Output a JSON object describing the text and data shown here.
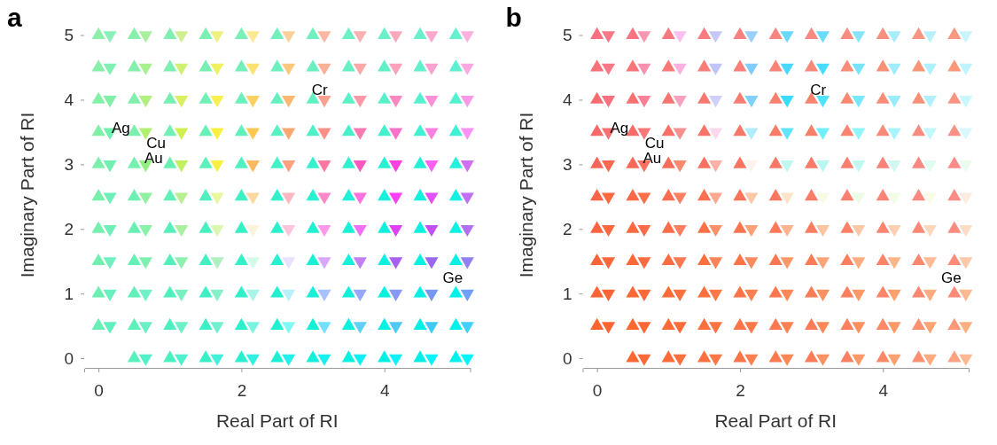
{
  "chart_data": [
    {
      "type": "scatter",
      "title": "a",
      "xlabel": "Real Part of RI",
      "ylabel": "Imaginary Part of RI",
      "xlim": [
        -0.2,
        5.2
      ],
      "ylim": [
        -0.15,
        5.2
      ],
      "xticks": [
        0,
        2,
        4
      ],
      "yticks": [
        0,
        1,
        2,
        3,
        4,
        5
      ],
      "annotations": [
        "Ag",
        "Cu",
        "Au",
        "Cr",
        "Ge"
      ],
      "series": [
        {
          "marker": "triangle",
          "x": [
            0,
            0.5,
            1,
            1.5,
            2,
            2.5,
            3,
            3.5,
            4,
            4.5,
            5,
            0,
            0.5,
            1,
            1.5,
            2,
            2.5,
            3,
            3.5,
            4,
            4.5,
            5,
            0,
            0.5,
            1,
            1.5,
            2,
            2.5,
            3,
            3.5,
            4,
            4.5,
            5,
            0,
            0.5,
            1,
            1.5,
            2,
            2.5,
            3,
            3.5,
            4,
            4.5,
            5,
            0,
            0.5,
            1,
            1.5,
            2,
            2.5,
            3,
            3.5,
            4,
            4.5,
            5,
            0,
            0.5,
            1,
            1.5,
            2,
            2.5,
            3,
            3.5,
            4,
            4.5,
            5,
            0,
            0.5,
            1,
            1.5,
            2,
            2.5,
            3,
            3.5,
            4,
            4.5,
            5,
            0,
            0.5,
            1,
            1.5,
            2,
            2.5,
            3,
            3.5,
            4,
            4.5,
            5,
            0,
            0.5,
            1,
            1.5,
            2,
            2.5,
            3,
            3.5,
            4,
            4.5,
            5,
            0,
            0.5,
            1,
            1.5,
            2,
            2.5,
            3,
            3.5,
            4,
            4.5,
            5,
            0.5,
            1,
            1.5,
            2,
            2.5,
            3,
            3.5,
            4,
            4.5,
            5
          ],
          "values": [
            5,
            5,
            5,
            5,
            5,
            5,
            5,
            5,
            5,
            5,
            5,
            4.5,
            4.5,
            4.5,
            4.5,
            4.5,
            4.5,
            4.5,
            4.5,
            4.5,
            4.5,
            4.5,
            4,
            4,
            4,
            4,
            4,
            4,
            4,
            4,
            4,
            4,
            4,
            3.5,
            3.5,
            3.5,
            3.5,
            3.5,
            3.5,
            3.5,
            3.5,
            3.5,
            3.5,
            3.5,
            3,
            3,
            3,
            3,
            3,
            3,
            3,
            3,
            3,
            3,
            3,
            2.5,
            2.5,
            2.5,
            2.5,
            2.5,
            2.5,
            2.5,
            2.5,
            2.5,
            2.5,
            2.5,
            2,
            2,
            2,
            2,
            2,
            2,
            2,
            2,
            2,
            2,
            2,
            1.5,
            1.5,
            1.5,
            1.5,
            1.5,
            1.5,
            1.5,
            1.5,
            1.5,
            1.5,
            1.5,
            1,
            1,
            1,
            1,
            1,
            1,
            1,
            1,
            1,
            1,
            1,
            0.5,
            0.5,
            0.5,
            0.5,
            0.5,
            0.5,
            0.5,
            0.5,
            0.5,
            0.5,
            0.5,
            0,
            0,
            0,
            0,
            0,
            0,
            0,
            0,
            0,
            0
          ],
          "colors": [
            "#8cf0a8",
            "#88f0aa",
            "#80f0b0",
            "#7cf0b4",
            "#78f0b8",
            "#74f0bc",
            "#70f0c0",
            "#6cf0c4",
            "#6af0c8",
            "#68f0cc",
            "#66f0d0",
            "#88f0a8",
            "#84f0ac",
            "#7cf0b0",
            "#78f0b4",
            "#72f0b8",
            "#6ef0bc",
            "#6af0c0",
            "#66f0c4",
            "#62f0c8",
            "#60f0cc",
            "#5ef0d0",
            "#84f0a8",
            "#80f0ac",
            "#76f0b0",
            "#70f0b6",
            "#6af0ba",
            "#64f0be",
            "#60f0c2",
            "#5cf0c6",
            "#58f0ca",
            "#56f0ce",
            "#54f0d2",
            "#80f0a8",
            "#7af0ac",
            "#70f0b2",
            "#68f0b8",
            "#60f0bc",
            "#58f0c0",
            "#50f0c6",
            "#48f0ca",
            "#44f0ce",
            "#40f0d2",
            "#40f0d6",
            "#7cf0aa",
            "#74f0b0",
            "#68f0b4",
            "#5cf0ba",
            "#50f0c0",
            "#44f0c6",
            "#38f0cc",
            "#30f0d0",
            "#28f0d4",
            "#24f0d8",
            "#24f0dc",
            "#78f0ac",
            "#6ef0b2",
            "#60f0b8",
            "#50f0be",
            "#40f0c4",
            "#34f0ca",
            "#28f0d0",
            "#20f0d6",
            "#18f0da",
            "#14f0de",
            "#14f0e2",
            "#74f0ae",
            "#68f0b4",
            "#58f0ba",
            "#48f0c0",
            "#38f0c6",
            "#2cf0cc",
            "#20f0d2",
            "#18f0d8",
            "#10f0dc",
            "#0cf0e0",
            "#0cf0e4",
            "#70f0b0",
            "#64f0b6",
            "#54f0bc",
            "#44f0c2",
            "#34f0c8",
            "#28f0ce",
            "#1cf0d4",
            "#14f0da",
            "#0cf0de",
            "#08f0e2",
            "#08f0e6",
            "#6cf0b2",
            "#60f0b8",
            "#50f0be",
            "#40f0c4",
            "#30f0ca",
            "#24f0d0",
            "#18f0d6",
            "#10f0dc",
            "#08f0e0",
            "#04f0e4",
            "#04f0e8",
            "#68f0b4",
            "#5cf0ba",
            "#4cf0c0",
            "#3cf0c6",
            "#2cf0cc",
            "#20f0d2",
            "#14f0d8",
            "#0cf0de",
            "#04f0e2",
            "#00f0e6",
            "#00f0ea",
            "#58f0bc",
            "#48f0c2",
            "#38f0c8",
            "#28f0ce",
            "#1cf0d4",
            "#10f0da",
            "#08f0e0",
            "#00f0e4",
            "#00f0e8",
            "#00f0ec"
          ]
        },
        {
          "marker": "triangle-down",
          "x": [
            0.16,
            0.66,
            1.16,
            1.66,
            2.16,
            2.66,
            3.16,
            3.66,
            4.16,
            4.66,
            5.16,
            0.16,
            0.66,
            1.16,
            1.66,
            2.16,
            2.66,
            3.16,
            3.66,
            4.16,
            4.66,
            5.16,
            0.16,
            0.66,
            1.16,
            1.66,
            2.16,
            2.66,
            3.16,
            3.66,
            4.16,
            4.66,
            5.16,
            0.16,
            0.66,
            1.16,
            1.66,
            2.16,
            2.66,
            3.16,
            3.66,
            4.16,
            4.66,
            5.16,
            0.16,
            0.66,
            1.16,
            1.66,
            2.16,
            2.66,
            3.16,
            3.66,
            4.16,
            4.66,
            5.16,
            0.16,
            0.66,
            1.16,
            1.66,
            2.16,
            2.66,
            3.16,
            3.66,
            4.16,
            4.66,
            5.16,
            0.16,
            0.66,
            1.16,
            1.66,
            2.16,
            2.66,
            3.16,
            3.66,
            4.16,
            4.66,
            5.16,
            0.16,
            0.66,
            1.16,
            1.66,
            2.16,
            2.66,
            3.16,
            3.66,
            4.16,
            4.66,
            5.16,
            0.16,
            0.66,
            1.16,
            1.66,
            2.16,
            2.66,
            3.16,
            3.66,
            4.16,
            4.66,
            5.16,
            0.16,
            0.66,
            1.16,
            1.66,
            2.16,
            2.66,
            3.16,
            3.66,
            4.16,
            4.66,
            5.16,
            0.66,
            1.16,
            1.66,
            2.16,
            2.66,
            3.16,
            3.66,
            4.16,
            4.66,
            5.16
          ],
          "values": [
            5,
            5,
            5,
            5,
            5,
            5,
            5,
            5,
            5,
            5,
            5,
            4.5,
            4.5,
            4.5,
            4.5,
            4.5,
            4.5,
            4.5,
            4.5,
            4.5,
            4.5,
            4.5,
            4,
            4,
            4,
            4,
            4,
            4,
            4,
            4,
            4,
            4,
            4,
            3.5,
            3.5,
            3.5,
            3.5,
            3.5,
            3.5,
            3.5,
            3.5,
            3.5,
            3.5,
            3.5,
            3,
            3,
            3,
            3,
            3,
            3,
            3,
            3,
            3,
            3,
            3,
            2.5,
            2.5,
            2.5,
            2.5,
            2.5,
            2.5,
            2.5,
            2.5,
            2.5,
            2.5,
            2.5,
            2,
            2,
            2,
            2,
            2,
            2,
            2,
            2,
            2,
            2,
            2,
            1.5,
            1.5,
            1.5,
            1.5,
            1.5,
            1.5,
            1.5,
            1.5,
            1.5,
            1.5,
            1.5,
            1,
            1,
            1,
            1,
            1,
            1,
            1,
            1,
            1,
            1,
            1,
            0.5,
            0.5,
            0.5,
            0.5,
            0.5,
            0.5,
            0.5,
            0.5,
            0.5,
            0.5,
            0.5,
            0,
            0,
            0,
            0,
            0,
            0,
            0,
            0,
            0,
            0
          ],
          "colors": [
            "#88f0b8",
            "#a8f0a0",
            "#d0f090",
            "#f0f080",
            "#fce890",
            "#fcd09a",
            "#fcb8a0",
            "#fcb0b0",
            "#fca8bc",
            "#fca8cc",
            "#fcb0dc",
            "#80f0b4",
            "#a8f090",
            "#d0f070",
            "#f0f060",
            "#fce070",
            "#fcc880",
            "#fcb098",
            "#fca8a8",
            "#fca0bc",
            "#fca0d0",
            "#fca8e0",
            "#80f0a8",
            "#b0f080",
            "#d8f060",
            "#f8f050",
            "#fcd060",
            "#fcb870",
            "#fca090",
            "#fc98a8",
            "#fc88c0",
            "#fc90d8",
            "#fc98e8",
            "#70f0b0",
            "#b0f070",
            "#d0f050",
            "#f8f040",
            "#fcc850",
            "#fca870",
            "#fc9088",
            "#fc78b0",
            "#fc70c8",
            "#fc80e0",
            "#fc90f4",
            "#70f0b0",
            "#90f080",
            "#c0f060",
            "#f8f040",
            "#fcb860",
            "#fca080",
            "#fc78a0",
            "#fc58c0",
            "#fc40e0",
            "#fc60f0",
            "#d070f0",
            "#70f0b8",
            "#90f0a0",
            "#b8f090",
            "#e8f8a0",
            "#fcd8a0",
            "#fcb8c0",
            "#fc88c8",
            "#fc70e0",
            "#fc40f8",
            "#e050f4",
            "#c070f4",
            "#70f0b8",
            "#88f0a8",
            "#a8f0a0",
            "#d8f8b0",
            "#fcf4d8",
            "#fcc4dc",
            "#fc98e8",
            "#f070f4",
            "#e040f4",
            "#c050f0",
            "#b070f0",
            "#70f0c0",
            "#80f0b0",
            "#90f0b0",
            "#b0f0c0",
            "#d0fce8",
            "#e8e0fc",
            "#d8a8f8",
            "#c080f4",
            "#a860f0",
            "#9868f0",
            "#9080f0",
            "#68f0c0",
            "#70f0c4",
            "#78f0c0",
            "#88f0c8",
            "#a8f4e8",
            "#b8f0fc",
            "#a8c0fc",
            "#98a8f8",
            "#8898f4",
            "#7898f0",
            "#70a0f8",
            "#60f0c0",
            "#68f0c4",
            "#6cf0c8",
            "#70f0d0",
            "#78f4e0",
            "#80f8f4",
            "#70e0fc",
            "#60d0f8",
            "#50c8f8",
            "#40c8f8",
            "#40d0fc",
            "#50f0c8",
            "#50f0cc",
            "#40f0d8",
            "#30f0e0",
            "#20f0e8",
            "#18f0f0",
            "#10f0f4",
            "#10f0f8",
            "#08f4fc",
            "#00f4fc"
          ]
        }
      ]
    },
    {
      "type": "scatter",
      "title": "b",
      "xlabel": "Real Part of RI",
      "ylabel": "Imaginary Part of RI",
      "xlim": [
        -0.2,
        5.2
      ],
      "ylim": [
        -0.15,
        5.2
      ],
      "xticks": [
        0,
        2,
        4
      ],
      "yticks": [
        0,
        1,
        2,
        3,
        4,
        5
      ],
      "annotations": [
        "Ag",
        "Cu",
        "Au",
        "Cr",
        "Ge"
      ],
      "series": [
        {
          "marker": "triangle",
          "x": [
            0,
            0.5,
            1,
            1.5,
            2,
            2.5,
            3,
            3.5,
            4,
            4.5,
            5,
            0,
            0.5,
            1,
            1.5,
            2,
            2.5,
            3,
            3.5,
            4,
            4.5,
            5,
            0,
            0.5,
            1,
            1.5,
            2,
            2.5,
            3,
            3.5,
            4,
            4.5,
            5,
            0,
            0.5,
            1,
            1.5,
            2,
            2.5,
            3,
            3.5,
            4,
            4.5,
            5,
            0,
            0.5,
            1,
            1.5,
            2,
            2.5,
            3,
            3.5,
            4,
            4.5,
            5,
            0,
            0.5,
            1,
            1.5,
            2,
            2.5,
            3,
            3.5,
            4,
            4.5,
            5,
            0,
            0.5,
            1,
            1.5,
            2,
            2.5,
            3,
            3.5,
            4,
            4.5,
            5,
            0,
            0.5,
            1,
            1.5,
            2,
            2.5,
            3,
            3.5,
            4,
            4.5,
            5,
            0,
            0.5,
            1,
            1.5,
            2,
            2.5,
            3,
            3.5,
            4,
            4.5,
            5,
            0,
            0.5,
            1,
            1.5,
            2,
            2.5,
            3,
            3.5,
            4,
            4.5,
            5,
            0.5,
            1,
            1.5,
            2,
            2.5,
            3,
            3.5,
            4,
            4.5,
            5
          ],
          "values": [
            5,
            5,
            5,
            5,
            5,
            5,
            5,
            5,
            5,
            5,
            5,
            4.5,
            4.5,
            4.5,
            4.5,
            4.5,
            4.5,
            4.5,
            4.5,
            4.5,
            4.5,
            4.5,
            4,
            4,
            4,
            4,
            4,
            4,
            4,
            4,
            4,
            4,
            4,
            3.5,
            3.5,
            3.5,
            3.5,
            3.5,
            3.5,
            3.5,
            3.5,
            3.5,
            3.5,
            3.5,
            3,
            3,
            3,
            3,
            3,
            3,
            3,
            3,
            3,
            3,
            3,
            2.5,
            2.5,
            2.5,
            2.5,
            2.5,
            2.5,
            2.5,
            2.5,
            2.5,
            2.5,
            2.5,
            2,
            2,
            2,
            2,
            2,
            2,
            2,
            2,
            2,
            2,
            2,
            1.5,
            1.5,
            1.5,
            1.5,
            1.5,
            1.5,
            1.5,
            1.5,
            1.5,
            1.5,
            1.5,
            1,
            1,
            1,
            1,
            1,
            1,
            1,
            1,
            1,
            1,
            1,
            0.5,
            0.5,
            0.5,
            0.5,
            0.5,
            0.5,
            0.5,
            0.5,
            0.5,
            0.5,
            0.5,
            0,
            0,
            0,
            0,
            0,
            0,
            0,
            0,
            0,
            0
          ],
          "colors": [
            "#f87080",
            "#f87480",
            "#f87880",
            "#f87c80",
            "#f88080",
            "#f88480",
            "#f88880",
            "#f88c80",
            "#f89080",
            "#f89480",
            "#f89880",
            "#f87078",
            "#f87478",
            "#f87878",
            "#f87c78",
            "#f88078",
            "#f88478",
            "#f88878",
            "#f88c78",
            "#f89078",
            "#f89478",
            "#f89878",
            "#f86c70",
            "#f87070",
            "#f87470",
            "#f87870",
            "#f87c70",
            "#f88070",
            "#f88470",
            "#f88870",
            "#f88c78",
            "#f89078",
            "#f89480",
            "#f86868",
            "#f86c68",
            "#f87068",
            "#f87468",
            "#f87868",
            "#f87c68",
            "#f88068",
            "#f88470",
            "#f88878",
            "#f88c80",
            "#f89088",
            "#f86458",
            "#f86858",
            "#f86c58",
            "#f87060",
            "#f87460",
            "#f87868",
            "#f87c68",
            "#f88070",
            "#f88478",
            "#f88880",
            "#f88c88",
            "#fc6448",
            "#fc6848",
            "#fc6c50",
            "#fc7050",
            "#fc7458",
            "#fc7860",
            "#fc7c68",
            "#fc8070",
            "#fc8478",
            "#fc8880",
            "#fc8c88",
            "#fc6440",
            "#fc6840",
            "#fc6c48",
            "#fc7048",
            "#fc7450",
            "#fc7858",
            "#fc7c60",
            "#fc8068",
            "#fc8470",
            "#fc8878",
            "#fc8c80",
            "#fc6438",
            "#fc6838",
            "#fc6c40",
            "#fc7040",
            "#fc7448",
            "#fc7850",
            "#fc7c58",
            "#fc8060",
            "#fc8468",
            "#fc8870",
            "#fc8c78",
            "#fc6434",
            "#fc6834",
            "#fc6c38",
            "#fc7040",
            "#fc7448",
            "#fc7850",
            "#fc7c58",
            "#fc8060",
            "#fc8468",
            "#fc8870",
            "#fc8c78",
            "#fc6430",
            "#fc6830",
            "#fc6c38",
            "#fc7040",
            "#fc7448",
            "#fc7850",
            "#fc7c58",
            "#fc8060",
            "#fc8868",
            "#fc9070",
            "#fc9878",
            "#fc6830",
            "#fc6c38",
            "#fc7040",
            "#fc7448",
            "#fc7850",
            "#fc7c58",
            "#fc8060",
            "#fc8868",
            "#fc9070",
            "#fca080"
          ]
        },
        {
          "marker": "triangle-down",
          "x": [
            0.16,
            0.66,
            1.16,
            1.66,
            2.16,
            2.66,
            3.16,
            3.66,
            4.16,
            4.66,
            5.16,
            0.16,
            0.66,
            1.16,
            1.66,
            2.16,
            2.66,
            3.16,
            3.66,
            4.16,
            4.66,
            5.16,
            0.16,
            0.66,
            1.16,
            1.66,
            2.16,
            2.66,
            3.16,
            3.66,
            4.16,
            4.66,
            5.16,
            0.16,
            0.66,
            1.16,
            1.66,
            2.16,
            2.66,
            3.16,
            3.66,
            4.16,
            4.66,
            5.16,
            0.16,
            0.66,
            1.16,
            1.66,
            2.16,
            2.66,
            3.16,
            3.66,
            4.16,
            4.66,
            5.16,
            0.16,
            0.66,
            1.16,
            1.66,
            2.16,
            2.66,
            3.16,
            3.66,
            4.16,
            4.66,
            5.16,
            0.16,
            0.66,
            1.16,
            1.66,
            2.16,
            2.66,
            3.16,
            3.66,
            4.16,
            4.66,
            5.16,
            0.16,
            0.66,
            1.16,
            1.66,
            2.16,
            2.66,
            3.16,
            3.66,
            4.16,
            4.66,
            5.16,
            0.16,
            0.66,
            1.16,
            1.66,
            2.16,
            2.66,
            3.16,
            3.66,
            4.16,
            4.66,
            5.16,
            0.16,
            0.66,
            1.16,
            1.66,
            2.16,
            2.66,
            3.16,
            3.66,
            4.16,
            4.66,
            5.16,
            0.66,
            1.16,
            1.66,
            2.16,
            2.66,
            3.16,
            3.66,
            4.16,
            4.66,
            5.16
          ],
          "values": [
            5,
            5,
            5,
            5,
            5,
            5,
            5,
            5,
            5,
            5,
            5,
            4.5,
            4.5,
            4.5,
            4.5,
            4.5,
            4.5,
            4.5,
            4.5,
            4.5,
            4.5,
            4.5,
            4,
            4,
            4,
            4,
            4,
            4,
            4,
            4,
            4,
            4,
            4,
            3.5,
            3.5,
            3.5,
            3.5,
            3.5,
            3.5,
            3.5,
            3.5,
            3.5,
            3.5,
            3.5,
            3,
            3,
            3,
            3,
            3,
            3,
            3,
            3,
            3,
            3,
            3,
            2.5,
            2.5,
            2.5,
            2.5,
            2.5,
            2.5,
            2.5,
            2.5,
            2.5,
            2.5,
            2.5,
            2,
            2,
            2,
            2,
            2,
            2,
            2,
            2,
            2,
            2,
            2,
            1.5,
            1.5,
            1.5,
            1.5,
            1.5,
            1.5,
            1.5,
            1.5,
            1.5,
            1.5,
            1.5,
            1,
            1,
            1,
            1,
            1,
            1,
            1,
            1,
            1,
            1,
            1,
            0.5,
            0.5,
            0.5,
            0.5,
            0.5,
            0.5,
            0.5,
            0.5,
            0.5,
            0.5,
            0.5,
            0,
            0,
            0,
            0,
            0,
            0,
            0,
            0,
            0,
            0
          ],
          "colors": [
            "#f87888",
            "#f898b0",
            "#fcc0f0",
            "#c8c8f8",
            "#98d0fc",
            "#68d8fc",
            "#68dcfc",
            "#88e4fc",
            "#a8ecfc",
            "#b8f0fc",
            "#c8f4fc",
            "#f87888",
            "#f890b0",
            "#fcb0e0",
            "#c0c4f8",
            "#80ccfc",
            "#48d8fc",
            "#48dcfc",
            "#78e4fc",
            "#a0ecfc",
            "#b0f0fc",
            "#c0f4fc",
            "#f87080",
            "#f88098",
            "#f8a0c0",
            "#d0d0f8",
            "#80d0fc",
            "#38dcfc",
            "#50e4fc",
            "#78e8fc",
            "#98ecfc",
            "#b0f0fc",
            "#c8f8fc",
            "#f87070",
            "#f87878",
            "#f89090",
            "#fcd8ec",
            "#b0ecfc",
            "#60e4fc",
            "#70f0fc",
            "#90f4fc",
            "#a8f4fc",
            "#c0f8fc",
            "#d8f8fc",
            "#fc6850",
            "#fc7060",
            "#fc8870",
            "#fcb0a8",
            "#fcf4ec",
            "#c0f8f0",
            "#b8f8f0",
            "#c0f8f0",
            "#d0f8f0",
            "#e0fcf0",
            "#ecfcec",
            "#fc6840",
            "#fc7048",
            "#fc8060",
            "#fca890",
            "#fcc8a8",
            "#fce4c8",
            "#f4fce4",
            "#ecfce4",
            "#f0fce4",
            "#f8fce4",
            "#fcece0",
            "#fc6840",
            "#fc6c48",
            "#fc8060",
            "#fc9068",
            "#fca078",
            "#fcb490",
            "#fcc4a0",
            "#fcc8a8",
            "#fcd0b0",
            "#fcd8bc",
            "#fcdcc4",
            "#fc6838",
            "#fc6c40",
            "#fc7850",
            "#fc8458",
            "#fc8c60",
            "#fc9868",
            "#fca478",
            "#fcac80",
            "#fcb488",
            "#fcbc98",
            "#fcc8a8",
            "#fc6434",
            "#fc6838",
            "#fc7040",
            "#fc7848",
            "#fc8050",
            "#fc8858",
            "#fc9060",
            "#fc9868",
            "#fca070",
            "#fcac80",
            "#fcb890",
            "#fc6430",
            "#fc6834",
            "#fc6c38",
            "#fc7440",
            "#fc7848",
            "#fc8050",
            "#fc8858",
            "#fc9060",
            "#fc9868",
            "#fca474",
            "#fcb080",
            "#fc6a38",
            "#fc7040",
            "#fc7848",
            "#fc8050",
            "#fc8858",
            "#fc9060",
            "#fc9868",
            "#fca070",
            "#fcac80",
            "#fcb890"
          ]
        }
      ]
    }
  ]
}
